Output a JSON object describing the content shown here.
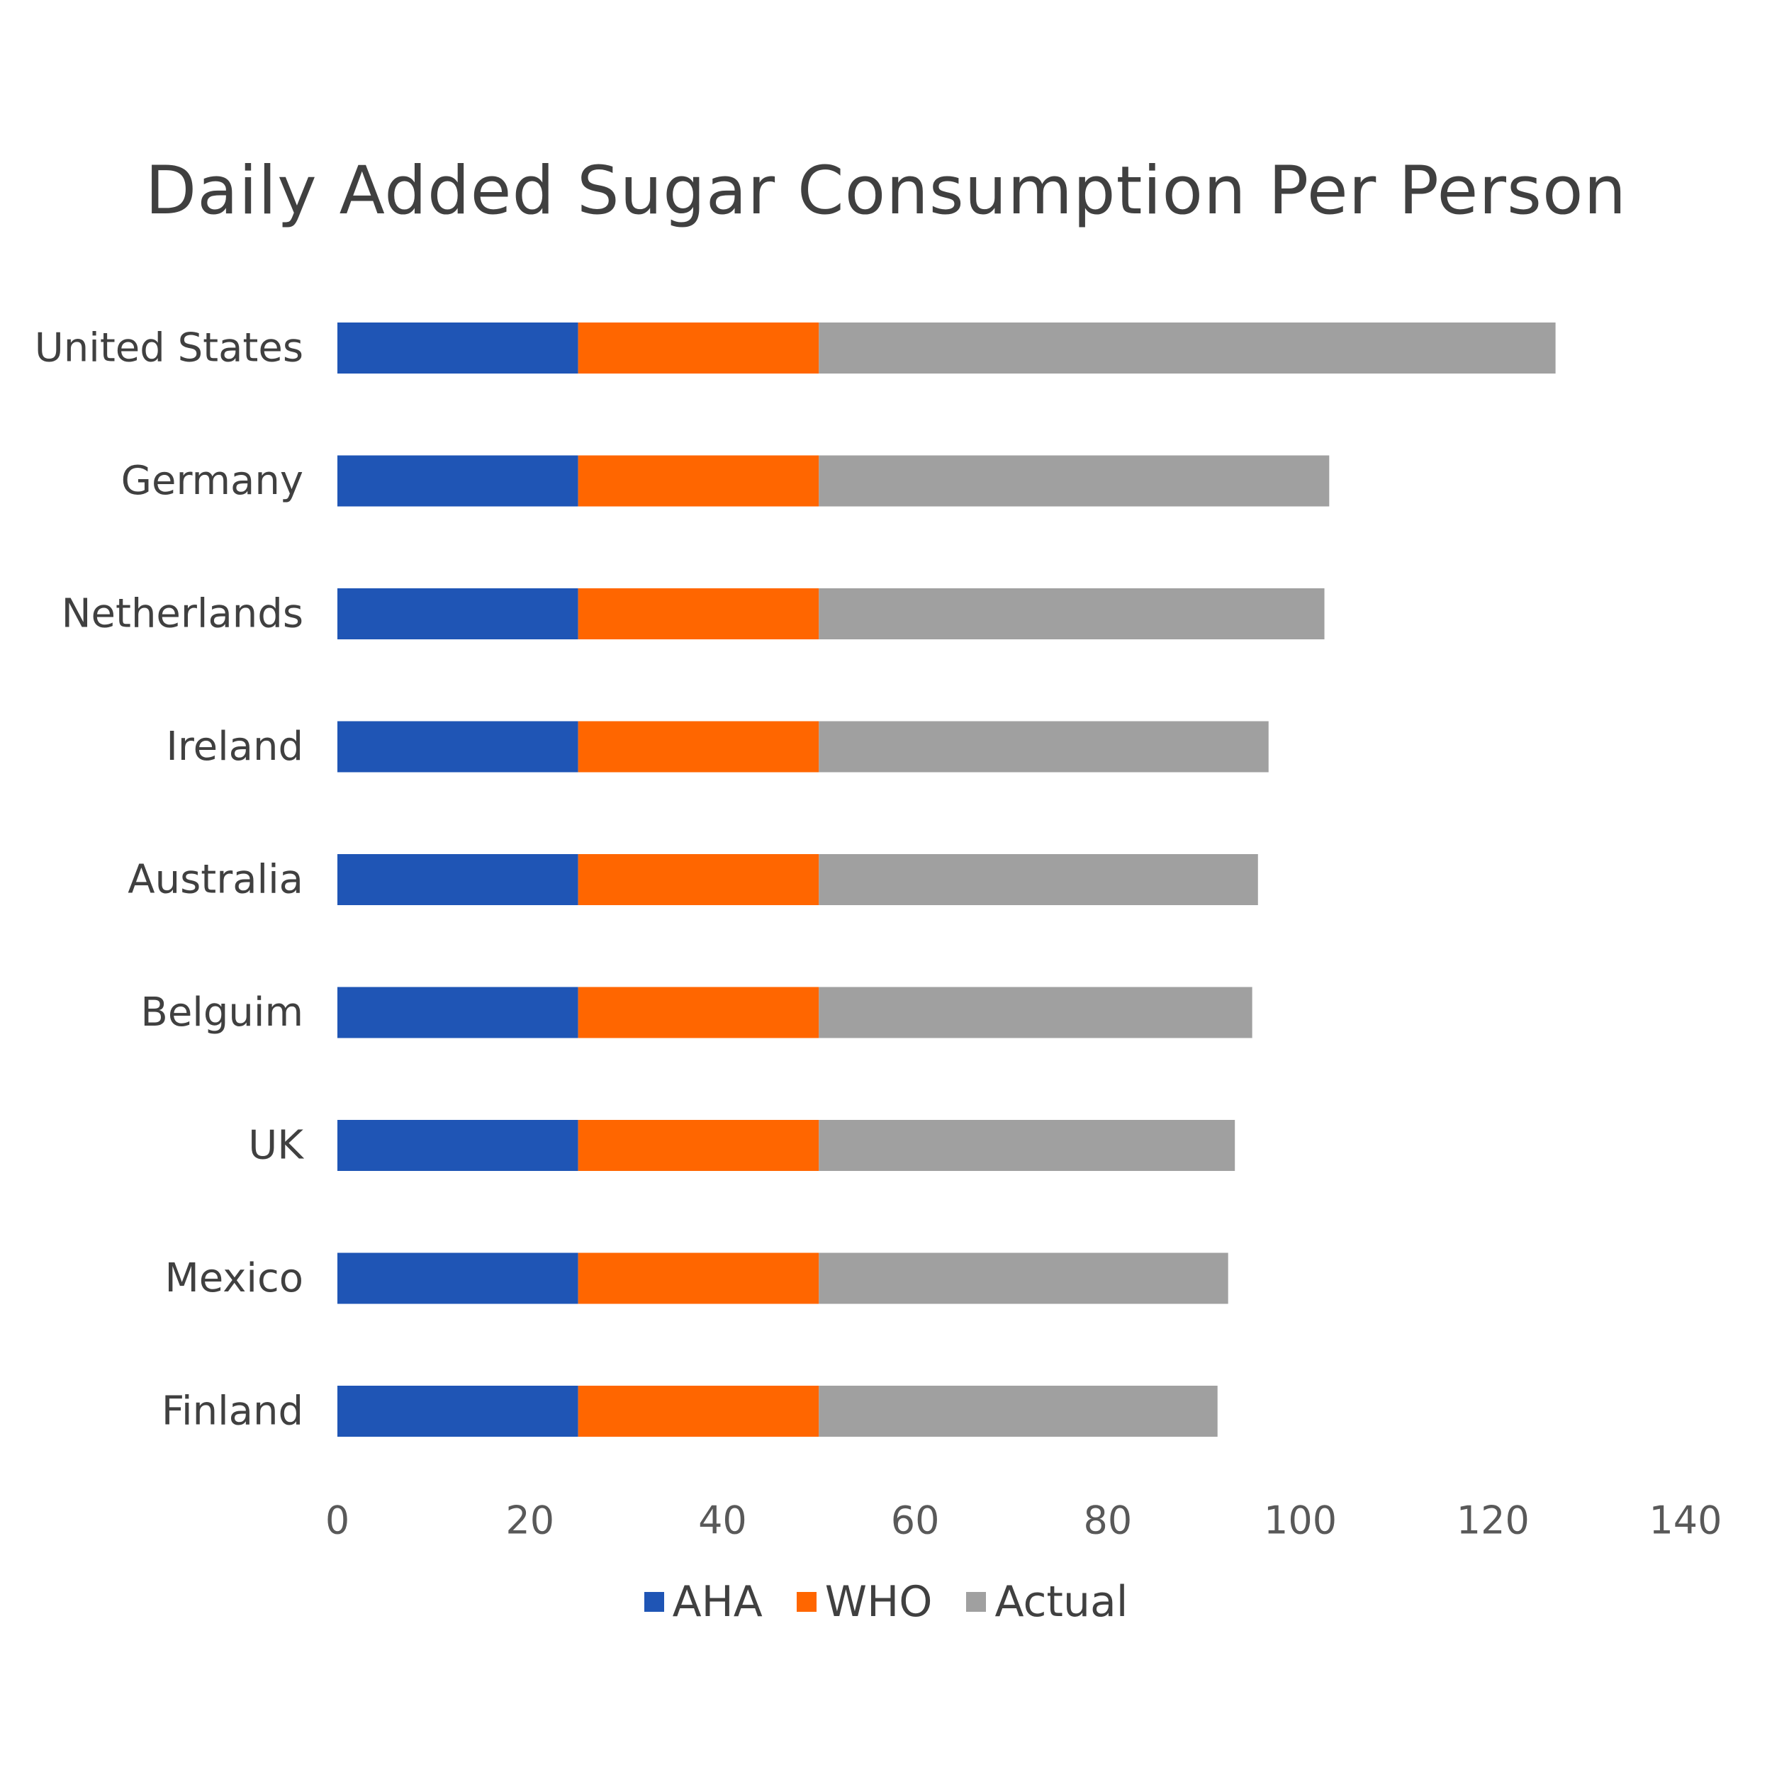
{
  "chart_data": {
    "type": "bar",
    "orientation": "horizontal",
    "stacked": true,
    "title": "Daily Added Sugar Consumption Per Person",
    "xlabel": "",
    "ylabel": "",
    "categories": [
      "United States",
      "Germany",
      "Netherlands",
      "Ireland",
      "Australia",
      "Belguim",
      "UK",
      "Mexico",
      "Finland"
    ],
    "series": [
      {
        "name": "AHA",
        "color": "#1f55b5",
        "values": [
          25,
          25,
          25,
          25,
          25,
          25,
          25,
          25,
          25
        ]
      },
      {
        "name": "WHO",
        "color": "#ff6600",
        "values": [
          25,
          25,
          25,
          25,
          25,
          25,
          25,
          25,
          25
        ]
      },
      {
        "name": "Actual",
        "color": "#a0a0a0",
        "values": [
          76.5,
          53,
          52.5,
          46.7,
          45.6,
          45,
          43.2,
          42.5,
          41.4
        ]
      }
    ],
    "xlim": [
      0,
      140
    ],
    "xticks": [
      0,
      20,
      40,
      60,
      80,
      100,
      120,
      140
    ],
    "grid": false,
    "legend": "bottom"
  }
}
